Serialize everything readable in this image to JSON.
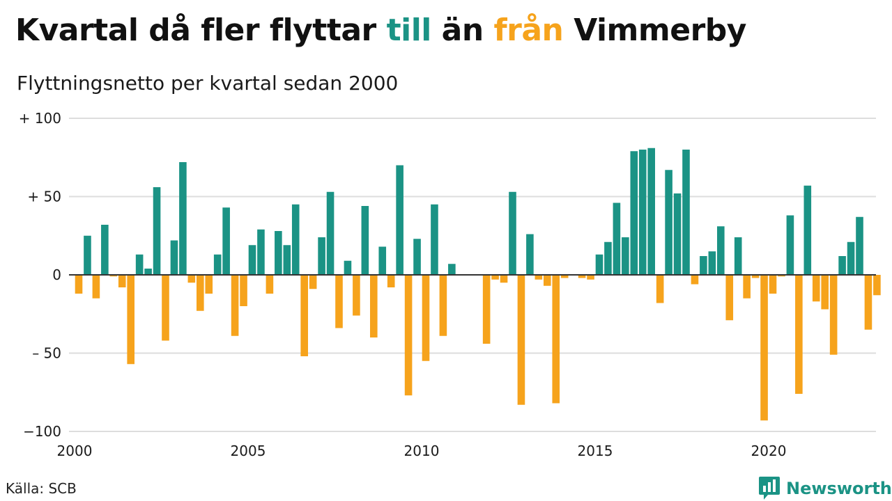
{
  "title": {
    "part1": "Kvartal då fler flyttar ",
    "part2": "till",
    "part3": " än ",
    "part4": "från",
    "part5": " Vimmerby"
  },
  "subtitle": "Flyttningsnetto per kvartal sedan 2000",
  "source": "Källa: SCB",
  "logo": {
    "name": "Newsworthy",
    "icon": "bar-chart-logo-icon"
  },
  "colors": {
    "positive": "#1b9385",
    "negative": "#f6a31c",
    "grid": "#dddddd",
    "zero": "#333333"
  },
  "chart_data": {
    "type": "bar",
    "title": "Kvartal då fler flyttar till än från Vimmerby",
    "subtitle": "Flyttningsnetto per kvartal sedan 2000",
    "ylim": [
      -100,
      100
    ],
    "yticks": [
      {
        "value": 100,
        "label": "+ 100"
      },
      {
        "value": 50,
        "label": "+  50"
      },
      {
        "value": 0,
        "label": "0"
      },
      {
        "value": -50,
        "label": "– 50"
      },
      {
        "value": -100,
        "label": "−100"
      }
    ],
    "xticks": [
      {
        "year": 2000,
        "label": "2000"
      },
      {
        "year": 2005,
        "label": "2005"
      },
      {
        "year": 2010,
        "label": "2010"
      },
      {
        "year": 2015,
        "label": "2015"
      },
      {
        "year": 2020,
        "label": "2020"
      }
    ],
    "start_year": 2000,
    "start_quarter": 1,
    "grid": true,
    "values": [
      -12,
      25,
      -15,
      32,
      -1,
      -8,
      -57,
      13,
      4,
      56,
      -42,
      22,
      72,
      -5,
      -23,
      -12,
      13,
      43,
      -39,
      -20,
      19,
      29,
      -12,
      28,
      19,
      45,
      -52,
      -9,
      24,
      53,
      -34,
      9,
      -26,
      44,
      -40,
      18,
      -8,
      70,
      -77,
      23,
      -55,
      45,
      -39,
      7,
      0,
      0,
      0,
      -44,
      -3,
      -5,
      53,
      -83,
      26,
      -3,
      -7,
      -82,
      -2,
      0,
      -2,
      -3,
      13,
      21,
      46,
      24,
      79,
      80,
      81,
      -18,
      67,
      52,
      80,
      -6,
      12,
      15,
      31,
      -29,
      24,
      -15,
      -2,
      -93,
      -12,
      -1,
      38,
      -76,
      57,
      -17,
      -22,
      -51,
      12,
      21,
      37,
      -35,
      -13
    ]
  }
}
